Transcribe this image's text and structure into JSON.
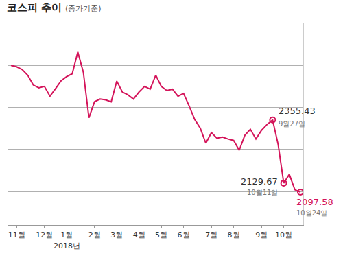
{
  "chart_data": {
    "type": "line",
    "title": "코스피 추이",
    "subtitle": "(종가기준)",
    "color": "#d4145a",
    "grid": true,
    "tick_labels": "x",
    "categories": [
      null,
      "11월",
      null,
      null,
      null,
      null,
      "12월",
      null,
      null,
      null,
      "1월",
      null,
      null,
      null,
      null,
      "2월",
      null,
      null,
      null,
      "3월",
      null,
      null,
      null,
      "4월",
      null,
      null,
      null,
      "5월",
      null,
      null,
      null,
      "6월",
      null,
      null,
      null,
      null,
      "7월",
      null,
      null,
      null,
      "8월",
      null,
      null,
      null,
      null,
      "9월",
      null,
      null,
      null,
      "10월",
      null,
      null,
      null
    ],
    "values": [
      2550,
      2545,
      2535,
      2515,
      2480,
      2470,
      2475,
      2440,
      2467,
      2495,
      2510,
      2520,
      2598,
      2525,
      2363,
      2420,
      2430,
      2427,
      2420,
      2494,
      2455,
      2445,
      2430,
      2455,
      2475,
      2465,
      2515,
      2475,
      2460,
      2465,
      2440,
      2450,
      2405,
      2357,
      2326,
      2272,
      2310,
      2290,
      2294,
      2287,
      2282,
      2247,
      2300,
      2322,
      2287,
      2318,
      2339,
      2355.43,
      2267,
      2129.67,
      2161,
      2106,
      2097.58
    ],
    "ylim": [
      1980,
      2700
    ],
    "yticks": [
      2100,
      2250,
      2400,
      2550
    ],
    "annotations": [
      {
        "x": 10,
        "text": "2018년"
      },
      {
        "x": 47,
        "y": 2355.43,
        "text": "2355.43",
        "date": "9월27일",
        "color": "#333333"
      },
      {
        "x": 49,
        "y": 2129.67,
        "text": "2129.67",
        "date": "10월11일",
        "color": "#333333"
      },
      {
        "x": 52,
        "y": 2097.58,
        "text": "2097.58",
        "date": "10월24일",
        "color": "#d4145a"
      }
    ]
  }
}
